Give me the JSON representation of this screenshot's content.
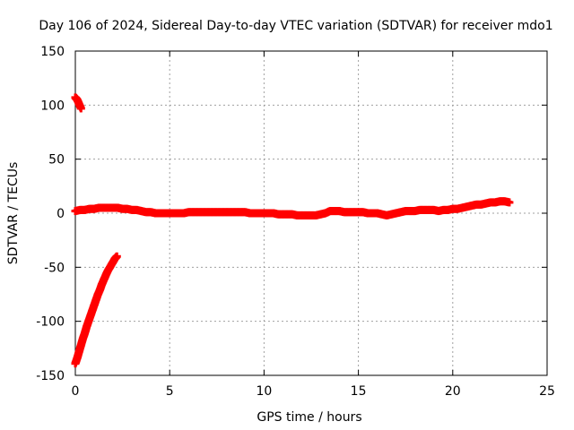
{
  "chart_data": {
    "type": "scatter",
    "title": "Day 106 of 2024, Sidereal Day-to-day VTEC variation (SDTVAR) for receiver mdo1",
    "xlabel": "GPS time / hours",
    "ylabel": "SDTVAR / TECUs",
    "xlim": [
      0,
      25
    ],
    "ylim": [
      -150,
      150
    ],
    "xticks": [
      0,
      5,
      10,
      15,
      20,
      25
    ],
    "yticks": [
      -150,
      -100,
      -50,
      0,
      50,
      100,
      150
    ],
    "grid": true,
    "marker_color": "#ff0000",
    "series": [
      {
        "name": "segment-early-high",
        "x": [
          0.0,
          0.05,
          0.1,
          0.15,
          0.2,
          0.25,
          0.3
        ],
        "y": [
          107,
          106,
          105,
          103,
          101,
          99,
          97
        ]
      },
      {
        "name": "segment-early-low",
        "x": [
          0.0,
          0.1,
          0.2,
          0.3,
          0.4,
          0.5,
          0.6,
          0.7,
          0.8,
          0.9,
          1.0,
          1.1,
          1.2,
          1.3,
          1.4,
          1.5,
          1.6,
          1.7,
          1.8,
          1.9,
          2.0,
          2.1,
          2.2
        ],
        "y": [
          -139,
          -134,
          -128,
          -122,
          -116,
          -111,
          -105,
          -100,
          -95,
          -90,
          -85,
          -80,
          -75,
          -71,
          -66,
          -62,
          -58,
          -54,
          -51,
          -48,
          -45,
          -42,
          -40
        ]
      },
      {
        "name": "segment-main",
        "x": [
          0.0,
          0.25,
          0.5,
          0.75,
          1.0,
          1.25,
          1.5,
          1.75,
          2.0,
          2.25,
          2.5,
          2.75,
          3.0,
          3.25,
          3.5,
          3.75,
          4.0,
          4.25,
          4.5,
          4.75,
          5.0,
          5.25,
          5.5,
          5.75,
          6.0,
          6.25,
          6.5,
          6.75,
          7.0,
          7.25,
          7.5,
          7.75,
          8.0,
          8.25,
          8.5,
          8.75,
          9.0,
          9.25,
          9.5,
          9.75,
          10.0,
          10.25,
          10.5,
          10.75,
          11.0,
          11.25,
          11.5,
          11.75,
          12.0,
          12.25,
          12.5,
          12.75,
          13.0,
          13.25,
          13.5,
          13.75,
          14.0,
          14.25,
          14.5,
          14.75,
          15.0,
          15.25,
          15.5,
          15.75,
          16.0,
          16.25,
          16.5,
          16.75,
          17.0,
          17.25,
          17.5,
          17.75,
          18.0,
          18.25,
          18.5,
          18.75,
          19.0,
          19.25,
          19.5,
          19.75,
          20.0,
          20.25,
          20.5,
          20.75,
          21.0,
          21.25,
          21.5,
          21.75,
          22.0,
          22.25,
          22.5,
          22.75,
          23.0
        ],
        "y": [
          2,
          3,
          3,
          4,
          4,
          5,
          5,
          5,
          5,
          5,
          4,
          4,
          3,
          3,
          2,
          1,
          1,
          0,
          0,
          0,
          0,
          0,
          0,
          0,
          1,
          1,
          1,
          1,
          1,
          1,
          1,
          1,
          1,
          1,
          1,
          1,
          1,
          0,
          0,
          0,
          0,
          0,
          0,
          -1,
          -1,
          -1,
          -1,
          -2,
          -2,
          -2,
          -2,
          -2,
          -1,
          0,
          2,
          2,
          2,
          1,
          1,
          1,
          1,
          1,
          0,
          0,
          0,
          -1,
          -2,
          -1,
          0,
          1,
          2,
          2,
          2,
          3,
          3,
          3,
          3,
          2,
          3,
          3,
          4,
          4,
          5,
          6,
          7,
          8,
          8,
          9,
          10,
          10,
          11,
          11,
          10
        ]
      }
    ]
  }
}
